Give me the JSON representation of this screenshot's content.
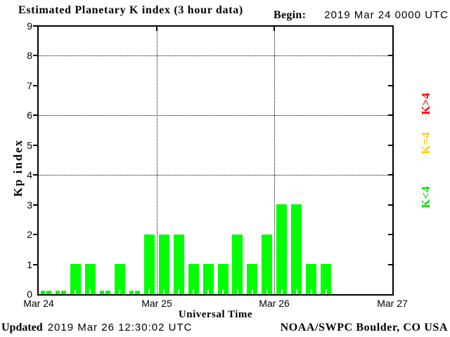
{
  "header": {
    "title": "Estimated Planetary K index (3 hour data)",
    "begin_label": "Begin:",
    "begin_value": "2019 Mar 24 0000 UTC"
  },
  "footer": {
    "updated_label": "Updated",
    "updated_value": "2019 Mar 26 12:30:02 UTC",
    "credit": "NOAA/SWPC Boulder, CO USA"
  },
  "chart_data": {
    "type": "bar",
    "title": "Estimated Planetary K index (3 hour data)",
    "xlabel": "Universal Time",
    "ylabel": "Kp index",
    "ylim": [
      0,
      9
    ],
    "yticks": [
      0,
      1,
      2,
      3,
      4,
      5,
      6,
      7,
      8,
      9
    ],
    "grid_y": [
      4,
      6,
      8
    ],
    "x_tick_labels": [
      "Mar 24",
      "Mar 25",
      "Mar 26",
      "Mar 27"
    ],
    "hours_per_bar": 3,
    "slots_per_day": 8,
    "days_shown": 3,
    "values": [
      0,
      0,
      1,
      1,
      0,
      1,
      0,
      2,
      2,
      2,
      1,
      1,
      1,
      2,
      1,
      2,
      3,
      3,
      1,
      1
    ],
    "bar_color": "#00ff00",
    "grid_on": true,
    "legend_position": "right",
    "legend": [
      {
        "label": "K>4",
        "color": "#ff0000"
      },
      {
        "label": "K=4",
        "color": "#ffcc00"
      },
      {
        "label": "K<4",
        "color": "#00e400"
      }
    ]
  }
}
